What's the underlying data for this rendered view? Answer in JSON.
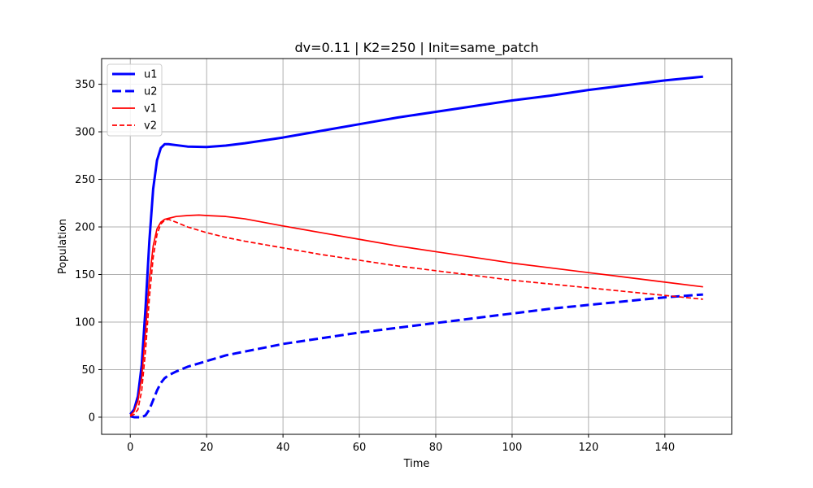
{
  "chart_data": {
    "type": "line",
    "title": "dv=0.11 | K2=250 | Init=same_patch",
    "xlabel": "Time",
    "ylabel": "Population",
    "xlim": [
      -7.5,
      157.5
    ],
    "ylim": [
      -18,
      377
    ],
    "xticks": [
      0,
      20,
      40,
      60,
      80,
      100,
      120,
      140
    ],
    "yticks": [
      0,
      50,
      100,
      150,
      200,
      250,
      300,
      350
    ],
    "grid": true,
    "legend_position": "upper-left",
    "series": [
      {
        "name": "u1",
        "color": "#0000ff",
        "style": "solid",
        "width": "thick",
        "points": [
          [
            0,
            3
          ],
          [
            1,
            8
          ],
          [
            2,
            22
          ],
          [
            3,
            55
          ],
          [
            4,
            115
          ],
          [
            5,
            185
          ],
          [
            6,
            240
          ],
          [
            7,
            270
          ],
          [
            8,
            283
          ],
          [
            9,
            287
          ],
          [
            10,
            287
          ],
          [
            12,
            286
          ],
          [
            15,
            284.5
          ],
          [
            20,
            284
          ],
          [
            25,
            285.5
          ],
          [
            30,
            288
          ],
          [
            40,
            294
          ],
          [
            50,
            301
          ],
          [
            60,
            308
          ],
          [
            70,
            315
          ],
          [
            80,
            321
          ],
          [
            90,
            327
          ],
          [
            100,
            333
          ],
          [
            110,
            338
          ],
          [
            120,
            344
          ],
          [
            130,
            349
          ],
          [
            140,
            354
          ],
          [
            150,
            358
          ]
        ]
      },
      {
        "name": "u2",
        "color": "#0000ff",
        "style": "dashed",
        "width": "thick",
        "points": [
          [
            0,
            1
          ],
          [
            1,
            0
          ],
          [
            2,
            0
          ],
          [
            3,
            0
          ],
          [
            4,
            2
          ],
          [
            5,
            8
          ],
          [
            6,
            18
          ],
          [
            7,
            28
          ],
          [
            8,
            36
          ],
          [
            9,
            41
          ],
          [
            10,
            44
          ],
          [
            12,
            48
          ],
          [
            15,
            53
          ],
          [
            20,
            59
          ],
          [
            25,
            65
          ],
          [
            30,
            69
          ],
          [
            40,
            77
          ],
          [
            50,
            83
          ],
          [
            60,
            89
          ],
          [
            70,
            94
          ],
          [
            80,
            99
          ],
          [
            90,
            104
          ],
          [
            100,
            109
          ],
          [
            110,
            114
          ],
          [
            120,
            118
          ],
          [
            130,
            122
          ],
          [
            140,
            126
          ],
          [
            150,
            129
          ]
        ]
      },
      {
        "name": "v1",
        "color": "#ff0000",
        "style": "solid",
        "width": "thin",
        "points": [
          [
            0,
            2
          ],
          [
            1,
            6
          ],
          [
            2,
            17
          ],
          [
            3,
            42
          ],
          [
            4,
            90
          ],
          [
            5,
            145
          ],
          [
            6,
            180
          ],
          [
            7,
            198
          ],
          [
            8,
            205
          ],
          [
            9,
            208
          ],
          [
            10,
            209
          ],
          [
            12,
            211
          ],
          [
            15,
            212
          ],
          [
            18,
            212.5
          ],
          [
            20,
            212
          ],
          [
            25,
            211
          ],
          [
            30,
            208.5
          ],
          [
            40,
            201
          ],
          [
            50,
            194
          ],
          [
            60,
            187
          ],
          [
            70,
            180
          ],
          [
            80,
            174
          ],
          [
            90,
            168
          ],
          [
            100,
            162
          ],
          [
            110,
            157
          ],
          [
            120,
            152
          ],
          [
            130,
            147
          ],
          [
            140,
            142
          ],
          [
            150,
            137
          ]
        ]
      },
      {
        "name": "v2",
        "color": "#ff0000",
        "style": "dashed",
        "width": "thin",
        "points": [
          [
            0,
            1
          ],
          [
            1,
            3
          ],
          [
            2,
            8
          ],
          [
            3,
            28
          ],
          [
            4,
            70
          ],
          [
            5,
            125
          ],
          [
            6,
            168
          ],
          [
            7,
            192
          ],
          [
            8,
            203
          ],
          [
            9,
            207
          ],
          [
            10,
            208
          ],
          [
            12,
            205
          ],
          [
            15,
            200
          ],
          [
            20,
            194
          ],
          [
            25,
            189
          ],
          [
            30,
            185
          ],
          [
            40,
            178
          ],
          [
            50,
            171
          ],
          [
            60,
            165
          ],
          [
            70,
            159
          ],
          [
            80,
            154
          ],
          [
            90,
            149
          ],
          [
            100,
            144
          ],
          [
            110,
            140
          ],
          [
            120,
            136
          ],
          [
            130,
            132
          ],
          [
            140,
            128
          ],
          [
            150,
            124
          ]
        ]
      }
    ]
  }
}
